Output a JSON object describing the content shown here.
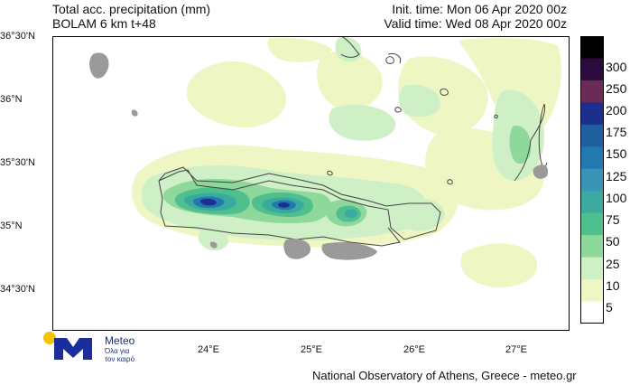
{
  "header": {
    "title_line1": "Total acc. precipitation (mm)",
    "title_line2": "BOLAM 6 km t+48",
    "init_time": "Init. time: Mon 06 Apr 2020 00z",
    "valid_time": "Valid time: Wed 08 Apr 2020 00z"
  },
  "axes": {
    "lat_labels": [
      "36°30'N",
      "36°N",
      "35°30'N",
      "35°N",
      "34°30'N"
    ],
    "lon_labels": [
      "24°E",
      "25°E",
      "26°E",
      "27°E"
    ]
  },
  "legend": {
    "levels": [
      "300",
      "250",
      "200",
      "175",
      "150",
      "125",
      "100",
      "75",
      "50",
      "25",
      "10",
      "5"
    ],
    "colors": [
      "#000000",
      "#2b0a3d",
      "#6a2b57",
      "#1c2f8f",
      "#1f5fa0",
      "#2478b0",
      "#3a94b5",
      "#3aa99e",
      "#4fbf8e",
      "#8ed89b",
      "#cff0c6",
      "#eef7c4",
      "#ffffff"
    ]
  },
  "logo": {
    "name": "Meteo",
    "tagline_line1": "Όλα για",
    "tagline_line2": "τον καιρό"
  },
  "footer": {
    "credit": "National Observatory of Athens, Greece - meteo.gr"
  }
}
